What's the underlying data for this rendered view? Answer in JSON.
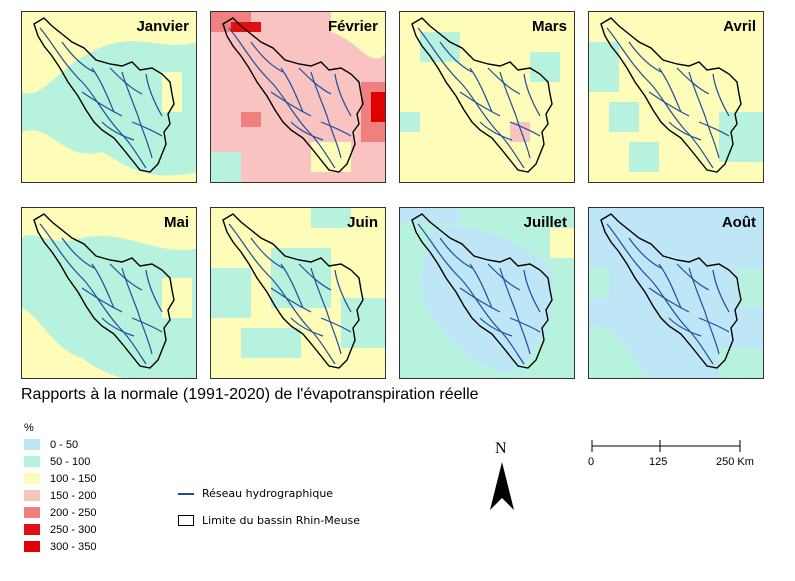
{
  "months": [
    "Janvier",
    "Février",
    "Mars",
    "Avril",
    "Mai",
    "Juin",
    "Juillet",
    "Août"
  ],
  "title": "Rapports à la normale (1991-2020) de l'évapotranspiration réelle",
  "legend": {
    "unit": "%",
    "classes": [
      {
        "label": "0 - 50",
        "color": "#bfe6f7"
      },
      {
        "label": "50 - 100",
        "color": "#b6f2dd"
      },
      {
        "label": "100 - 150",
        "color": "#fdfcb8"
      },
      {
        "label": "150 - 200",
        "color": "#f8c3c1"
      },
      {
        "label": "200 - 250",
        "color": "#f08080"
      },
      {
        "label": "250 - 300",
        "color": "#e01010"
      },
      {
        "label": "300 - 350",
        "color": "#e00000"
      }
    ],
    "river": "Réseau hydrographique",
    "basin": "Limite du bassin Rhin-Meuse"
  },
  "north_label": "N",
  "scale": {
    "labels": [
      "0",
      "125",
      "250 Km"
    ]
  }
}
